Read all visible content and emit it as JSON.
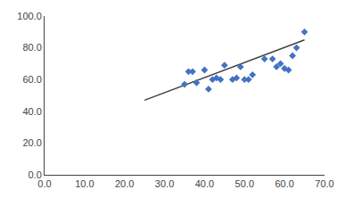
{
  "chart_data": {
    "type": "scatter",
    "series": [
      {
        "type": "scatter",
        "marker": "diamond",
        "color": "#4472c4",
        "x": [
          35,
          36,
          37,
          38,
          40,
          41,
          42,
          43,
          44,
          45,
          47,
          48,
          49,
          50,
          51,
          52,
          55,
          57,
          58,
          59,
          60,
          61,
          62,
          63,
          65
        ],
        "values": [
          57,
          65,
          65,
          58,
          66,
          54,
          60,
          61,
          60,
          69,
          60,
          61,
          68,
          60,
          60,
          63,
          73,
          73,
          68,
          70,
          67,
          66,
          75,
          80,
          90
        ]
      },
      {
        "type": "line",
        "line_style": "solid",
        "color": "#404040",
        "x": [
          25,
          65
        ],
        "values": [
          47,
          85
        ]
      }
    ],
    "xlim": [
      0,
      70
    ],
    "ylim": [
      0,
      100
    ],
    "xticks": [
      {
        "value": 0,
        "label": "0.0"
      },
      {
        "value": 10,
        "label": "10.0"
      },
      {
        "value": 20,
        "label": "20.0"
      },
      {
        "value": 30,
        "label": "30.0"
      },
      {
        "value": 40,
        "label": "40.0"
      },
      {
        "value": 50,
        "label": "50.0"
      },
      {
        "value": 60,
        "label": "60.0"
      },
      {
        "value": 70,
        "label": "70.0"
      }
    ],
    "yticks": [
      {
        "value": 0,
        "label": "0.0"
      },
      {
        "value": 20,
        "label": "20.0"
      },
      {
        "value": 40,
        "label": "40.0"
      },
      {
        "value": 60,
        "label": "60.0"
      },
      {
        "value": 80,
        "label": "80.0"
      },
      {
        "value": 100,
        "label": "100.0"
      }
    ],
    "grid": false
  }
}
